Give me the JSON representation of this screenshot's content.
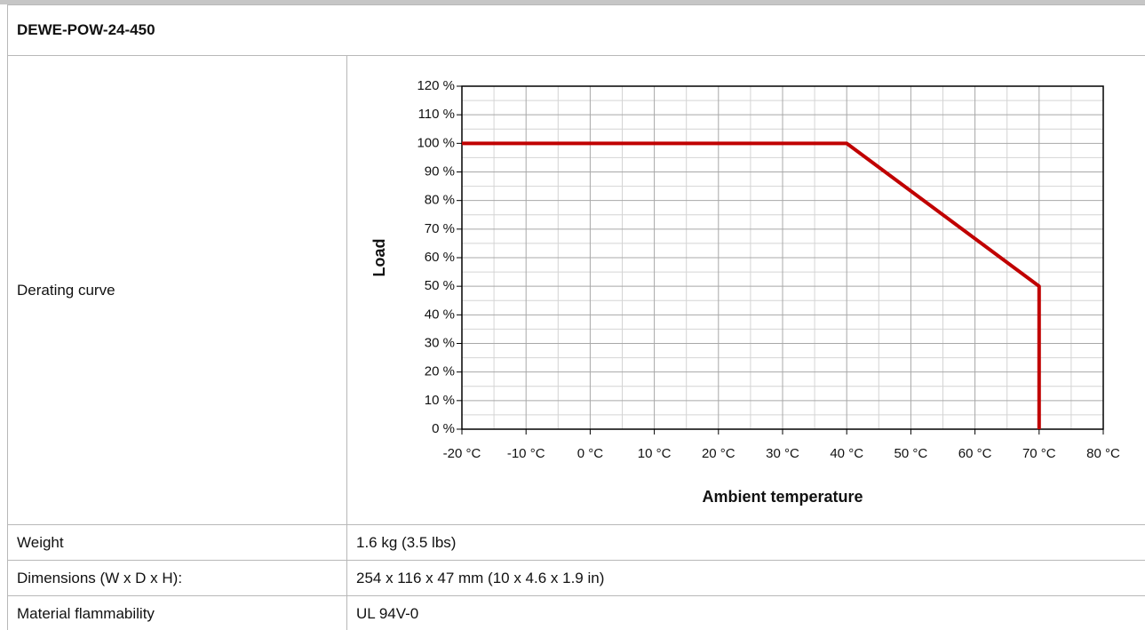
{
  "header": {
    "title": "DEWE-POW-24-450"
  },
  "rows": [
    {
      "label": "Derating curve"
    },
    {
      "label": "Weight",
      "value": "1.6 kg (3.5 lbs)"
    },
    {
      "label": "Dimensions (W x D x H):",
      "value": "254 x 116 x 47 mm (10 x 4.6 x 1.9 in)"
    },
    {
      "label": "Material flammability",
      "value": "UL 94V-0"
    }
  ],
  "chart_data": {
    "type": "line",
    "x": [
      -20,
      40,
      70,
      70
    ],
    "values": [
      100,
      100,
      50,
      0
    ],
    "color": "#c00000",
    "xlabel": "Ambient temperature",
    "ylabel": "Load",
    "xlim": [
      -20,
      80
    ],
    "xticks": [
      {
        "value": -20,
        "label": "-20 °C"
      },
      {
        "value": -10,
        "label": "-10 °C"
      },
      {
        "value": 0,
        "label": "0 °C"
      },
      {
        "value": 10,
        "label": "10 °C"
      },
      {
        "value": 20,
        "label": "20 °C"
      },
      {
        "value": 30,
        "label": "30 °C"
      },
      {
        "value": 40,
        "label": "40 °C"
      },
      {
        "value": 50,
        "label": "50 °C"
      },
      {
        "value": 60,
        "label": "60 °C"
      },
      {
        "value": 70,
        "label": "70 °C"
      },
      {
        "value": 80,
        "label": "80 °C"
      }
    ],
    "ylim": [
      0,
      120
    ],
    "yticks": [
      {
        "value": 0,
        "label": "0 %"
      },
      {
        "value": 10,
        "label": "10 %"
      },
      {
        "value": 20,
        "label": "20 %"
      },
      {
        "value": 30,
        "label": "30 %"
      },
      {
        "value": 40,
        "label": "40 %"
      },
      {
        "value": 50,
        "label": "50 %"
      },
      {
        "value": 60,
        "label": "60 %"
      },
      {
        "value": 70,
        "label": "70 %"
      },
      {
        "value": 80,
        "label": "80 %"
      },
      {
        "value": 90,
        "label": "90 %"
      },
      {
        "value": 100,
        "label": "100 %"
      },
      {
        "value": 110,
        "label": "110 %"
      },
      {
        "value": 120,
        "label": "120 %"
      }
    ],
    "grid": true,
    "minor_grid": true
  }
}
